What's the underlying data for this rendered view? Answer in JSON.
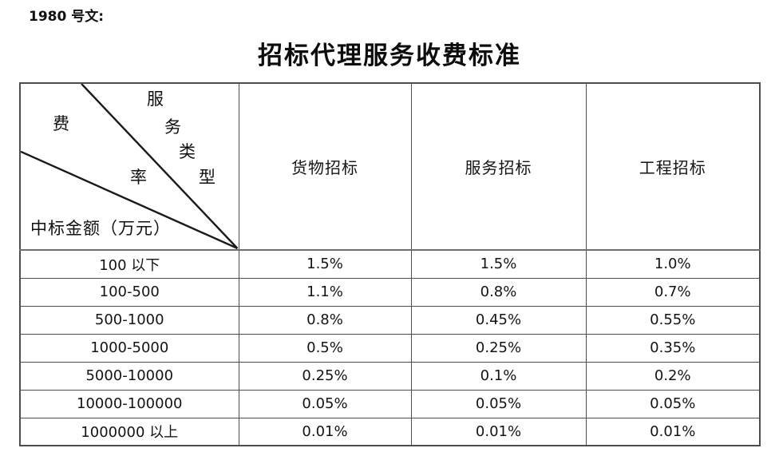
{
  "page": {
    "doc_ref": "1980 号文:",
    "title": "招标代理服务收费标准"
  },
  "table": {
    "corner": {
      "service_type_chars": [
        "服",
        "务",
        "类",
        "型"
      ],
      "fee_rate_chars": [
        "费",
        "率"
      ],
      "amount_label": "中标金额（万元）"
    },
    "columns": [
      "货物招标",
      "服务招标",
      "工程招标"
    ],
    "rows": [
      {
        "range": "100 以下",
        "values": [
          "1.5%",
          "1.5%",
          "1.0%"
        ]
      },
      {
        "range": "100-500",
        "values": [
          "1.1%",
          "0.8%",
          "0.7%"
        ]
      },
      {
        "range": "500-1000",
        "values": [
          "0.8%",
          "0.45%",
          "0.55%"
        ]
      },
      {
        "range": "1000-5000",
        "values": [
          "0.5%",
          "0.25%",
          "0.35%"
        ]
      },
      {
        "range": "5000-10000",
        "values": [
          "0.25%",
          "0.1%",
          "0.2%"
        ]
      },
      {
        "range": "10000-100000",
        "values": [
          "0.05%",
          "0.05%",
          "0.05%"
        ]
      },
      {
        "range": "1000000 以上",
        "values": [
          "0.01%",
          "0.01%",
          "0.01%"
        ]
      }
    ],
    "line_color": "#1a1a1a",
    "border_color": "#4d4d4d"
  }
}
